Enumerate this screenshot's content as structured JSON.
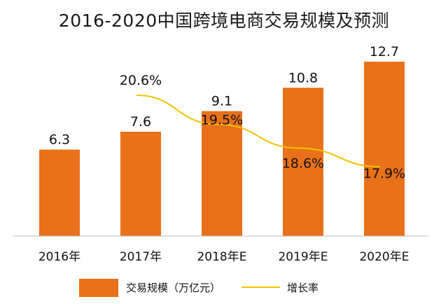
{
  "chart_data": {
    "type": "bar",
    "title": "2016-2020中国跨境电商交易规模及预测",
    "categories": [
      "2016年",
      "2017年",
      "2018年E",
      "2019年E",
      "2020年E"
    ],
    "series": [
      {
        "name": "交易规模（万亿元）",
        "type": "bar",
        "color": "#E8711A",
        "values": [
          6.3,
          7.6,
          9.1,
          10.8,
          12.7
        ]
      },
      {
        "name": "增长率",
        "type": "line",
        "color": "#F2C200",
        "values": [
          null,
          20.6,
          19.5,
          18.6,
          17.9
        ],
        "labels": [
          "",
          "20.6%",
          "19.5%",
          "18.6%",
          "17.9%"
        ]
      }
    ],
    "legend": "bottom",
    "grid": false
  }
}
